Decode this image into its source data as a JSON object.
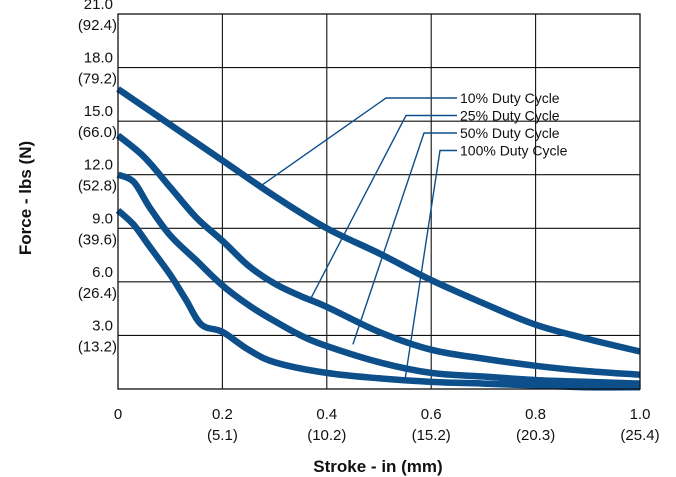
{
  "chart_data": {
    "type": "line",
    "title": "",
    "xlabel": "Stroke - in (mm)",
    "ylabel": "Force - lbs (N)",
    "xlim": [
      0,
      1.0
    ],
    "ylim": [
      0,
      21.0
    ],
    "grid": true,
    "legend_position": "top-right, with leader lines to each curve",
    "x_ticks": [
      {
        "value": 0,
        "label": "0",
        "sublabel": ""
      },
      {
        "value": 0.2,
        "label": "0.2",
        "sublabel": "(5.1)"
      },
      {
        "value": 0.4,
        "label": "0.4",
        "sublabel": "(10.2)"
      },
      {
        "value": 0.6,
        "label": "0.6",
        "sublabel": "(15.2)"
      },
      {
        "value": 0.8,
        "label": "0.8",
        "sublabel": "(20.3)"
      },
      {
        "value": 1.0,
        "label": "1.0",
        "sublabel": "(25.4)"
      }
    ],
    "y_ticks": [
      {
        "value": 3.0,
        "label": "3.0",
        "sublabel": "(13.2)"
      },
      {
        "value": 6.0,
        "label": "6.0",
        "sublabel": "(26.4)"
      },
      {
        "value": 9.0,
        "label": "9.0",
        "sublabel": "(39.6)"
      },
      {
        "value": 12.0,
        "label": "12.0",
        "sublabel": "(52.8)"
      },
      {
        "value": 15.0,
        "label": "15.0",
        "sublabel": "(66.0)"
      },
      {
        "value": 18.0,
        "label": "18.0",
        "sublabel": "(79.2)"
      },
      {
        "value": 21.0,
        "label": "21.0",
        "sublabel": "(92.4)"
      }
    ],
    "line_color": "#0d4f8b",
    "series": [
      {
        "name": "10% Duty Cycle",
        "label_at": [
          0.27,
          11.3
        ],
        "x": [
          0,
          0.1,
          0.2,
          0.3,
          0.4,
          0.5,
          0.6,
          0.7,
          0.8,
          0.9,
          1.0
        ],
        "y": [
          16.8,
          14.8,
          12.8,
          10.8,
          9.0,
          7.6,
          6.1,
          4.8,
          3.6,
          2.8,
          2.1
        ]
      },
      {
        "name": "25% Duty Cycle",
        "label_at": [
          0.37,
          5.1
        ],
        "x": [
          0,
          0.05,
          0.1,
          0.15,
          0.2,
          0.25,
          0.3,
          0.35,
          0.4,
          0.5,
          0.6,
          0.7,
          0.8,
          0.9,
          1.0
        ],
        "y": [
          14.2,
          13.0,
          11.3,
          9.6,
          8.3,
          6.9,
          5.9,
          5.2,
          4.6,
          3.2,
          2.2,
          1.7,
          1.3,
          1.0,
          0.8
        ]
      },
      {
        "name": "50% Duty Cycle",
        "label_at": [
          0.45,
          2.5
        ],
        "x": [
          0,
          0.03,
          0.06,
          0.1,
          0.15,
          0.2,
          0.25,
          0.3,
          0.35,
          0.4,
          0.5,
          0.6,
          0.7,
          0.8,
          0.9,
          1.0
        ],
        "y": [
          12.0,
          11.6,
          10.2,
          8.6,
          7.2,
          5.8,
          4.7,
          3.8,
          3.0,
          2.4,
          1.5,
          0.9,
          0.7,
          0.5,
          0.4,
          0.3
        ]
      },
      {
        "name": "100% Duty Cycle",
        "label_at": [
          0.55,
          0.55
        ],
        "x": [
          0,
          0.03,
          0.06,
          0.1,
          0.13,
          0.16,
          0.2,
          0.25,
          0.3,
          0.4,
          0.5,
          0.6,
          0.7,
          0.8,
          0.9,
          1.0
        ],
        "y": [
          10.0,
          9.2,
          8.0,
          6.4,
          5.0,
          3.6,
          3.2,
          2.2,
          1.5,
          0.9,
          0.6,
          0.4,
          0.3,
          0.2,
          0.1,
          0.1
        ]
      }
    ]
  }
}
